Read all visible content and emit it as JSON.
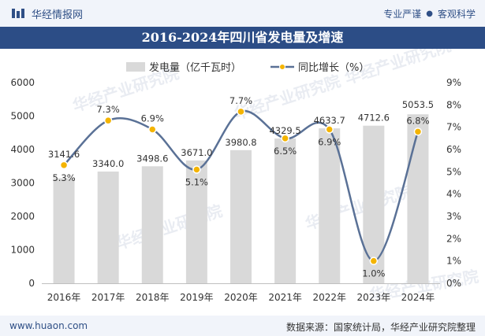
{
  "header": {
    "brand_name": "华经情报网",
    "tag_1": "专业严谨",
    "tag_separator": "●",
    "tag_2": "客观科学"
  },
  "watermark_text": "华经产业研究院",
  "footer": {
    "url": "www.huaon.com",
    "source": "数据来源：国家统计局，华经产业研究院整理"
  },
  "colors": {
    "bar": "#d9d9d9",
    "line": "#5a7196",
    "marker": "#f4b400",
    "title_bg": "#2c4d86"
  },
  "chart_data": {
    "type": "bar+line",
    "title": "2016-2024年四川省发电量及增速",
    "categories": [
      "2016年",
      "2017年",
      "2018年",
      "2019年",
      "2020年",
      "2021年",
      "2022年",
      "2023年",
      "2024年"
    ],
    "series": [
      {
        "name": "发电量（亿千瓦时）",
        "type": "bar",
        "axis": "left",
        "values": [
          3141.6,
          3340.0,
          3498.6,
          3671.0,
          3980.8,
          4329.5,
          4633.7,
          4712.6,
          5053.5
        ],
        "labels": [
          "3141.6",
          "3340.0",
          "3498.6",
          "3671.0",
          "3980.8",
          "4329.5",
          "4633.7",
          "4712.6",
          "5053.5"
        ]
      },
      {
        "name": "同比增长（%）",
        "type": "line",
        "axis": "right",
        "values": [
          5.3,
          7.3,
          6.9,
          5.1,
          7.7,
          6.5,
          6.9,
          1.0,
          6.8
        ],
        "labels": [
          "5.3%",
          "7.3%",
          "6.9%",
          "5.1%",
          "7.7%",
          "6.5%",
          "6.9%",
          "1.0%",
          "6.8%"
        ]
      }
    ],
    "y_left": {
      "min": 0,
      "max": 6000,
      "ticks": [
        "0",
        "1000",
        "2000",
        "3000",
        "4000",
        "5000",
        "6000"
      ]
    },
    "y_right": {
      "min": 0,
      "max": 9,
      "ticks": [
        "0%",
        "1%",
        "2%",
        "3%",
        "4%",
        "5%",
        "6%",
        "7%",
        "8%",
        "9%"
      ]
    },
    "legend_position": "top-center",
    "grid": false
  }
}
